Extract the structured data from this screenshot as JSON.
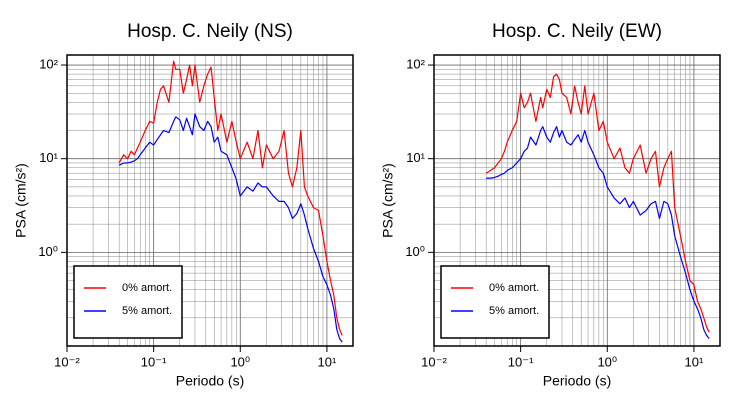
{
  "chart_data": [
    {
      "type": "line",
      "title": "Hosp. C. Neily (NS)",
      "x_label": "Periodo (s)",
      "y_label": "PSA (cm/s²)",
      "x_scale": "log",
      "y_scale": "log",
      "grid": true,
      "legend_position": "lower left",
      "xlim": [
        0.01,
        20
      ],
      "ylim": [
        0.1,
        128
      ],
      "xticks": [
        {
          "value": 0.01,
          "label": "10⁻²"
        },
        {
          "value": 0.1,
          "label": "10⁻¹"
        },
        {
          "value": 1,
          "label": "10⁰"
        },
        {
          "value": 10,
          "label": "10¹"
        }
      ],
      "yticks": [
        {
          "value": 1,
          "label": "10⁰"
        },
        {
          "value": 10,
          "label": "10¹"
        },
        {
          "value": 100,
          "label": "10²"
        }
      ],
      "x": [
        0.04,
        0.045,
        0.05,
        0.055,
        0.06,
        0.065,
        0.07,
        0.08,
        0.09,
        0.1,
        0.11,
        0.12,
        0.13,
        0.15,
        0.17,
        0.18,
        0.2,
        0.22,
        0.24,
        0.26,
        0.28,
        0.3,
        0.34,
        0.38,
        0.42,
        0.46,
        0.5,
        0.55,
        0.6,
        0.7,
        0.8,
        0.9,
        1.0,
        1.2,
        1.4,
        1.6,
        1.8,
        2.0,
        2.4,
        2.8,
        3.2,
        3.6,
        4.0,
        4.5,
        5.0,
        5.5,
        6.0,
        7.0,
        8.0,
        9.0,
        10,
        11,
        12,
        13,
        14,
        15
      ],
      "series": [
        {
          "name": "0% amort.",
          "color": "#ff0000",
          "values": [
            9,
            11,
            10,
            12,
            11,
            13,
            15,
            20,
            25,
            24,
            40,
            55,
            60,
            40,
            110,
            90,
            90,
            50,
            70,
            100,
            60,
            100,
            40,
            60,
            80,
            95,
            45,
            20,
            30,
            15,
            25,
            15,
            10,
            15,
            10,
            20,
            8,
            14,
            10,
            12,
            20,
            7,
            5,
            8,
            20,
            5,
            4,
            3,
            2.8,
            1.5,
            0.8,
            0.5,
            0.35,
            0.2,
            0.15,
            0.13
          ]
        },
        {
          "name": "5% amort.",
          "color": "#0000ff",
          "values": [
            8.5,
            9,
            9,
            9.2,
            9.5,
            10,
            11,
            13,
            15,
            14,
            16,
            18,
            20,
            19,
            25,
            28,
            26,
            20,
            27,
            22,
            18,
            30,
            22,
            20,
            25,
            22,
            15,
            17,
            12,
            11,
            8,
            6,
            4,
            5,
            4.5,
            5.5,
            5,
            5,
            4,
            3.5,
            3.5,
            3,
            2.3,
            2.6,
            3.3,
            2.5,
            1.8,
            1.1,
            0.8,
            0.55,
            0.45,
            0.35,
            0.25,
            0.15,
            0.12,
            0.11
          ]
        }
      ]
    },
    {
      "type": "line",
      "title": "Hosp. C. Neily (EW)",
      "x_label": "Periodo (s)",
      "y_label": "PSA (cm/s²)",
      "x_scale": "log",
      "y_scale": "log",
      "grid": true,
      "legend_position": "lower left",
      "xlim": [
        0.01,
        20
      ],
      "ylim": [
        0.1,
        128
      ],
      "xticks": [
        {
          "value": 0.01,
          "label": "10⁻²"
        },
        {
          "value": 0.1,
          "label": "10⁻¹"
        },
        {
          "value": 1,
          "label": "10⁰"
        },
        {
          "value": 10,
          "label": "10¹"
        }
      ],
      "yticks": [
        {
          "value": 1,
          "label": "10⁰"
        },
        {
          "value": 10,
          "label": "10¹"
        },
        {
          "value": 100,
          "label": "10²"
        }
      ],
      "x": [
        0.04,
        0.045,
        0.05,
        0.055,
        0.06,
        0.065,
        0.07,
        0.08,
        0.09,
        0.1,
        0.11,
        0.12,
        0.13,
        0.15,
        0.17,
        0.18,
        0.2,
        0.22,
        0.24,
        0.26,
        0.28,
        0.3,
        0.34,
        0.38,
        0.42,
        0.46,
        0.5,
        0.55,
        0.6,
        0.7,
        0.8,
        0.9,
        1.0,
        1.2,
        1.4,
        1.6,
        1.8,
        2.0,
        2.4,
        2.8,
        3.2,
        3.6,
        4.0,
        4.5,
        5.0,
        5.5,
        6.0,
        7.0,
        8.0,
        9.0,
        10,
        11,
        12,
        13,
        14,
        15
      ],
      "series": [
        {
          "name": "0% amort.",
          "color": "#ff0000",
          "values": [
            7,
            7.5,
            8,
            9,
            10,
            12,
            15,
            20,
            25,
            50,
            35,
            40,
            50,
            25,
            45,
            35,
            55,
            45,
            75,
            80,
            70,
            50,
            45,
            30,
            60,
            40,
            30,
            60,
            30,
            50,
            20,
            25,
            15,
            10,
            13,
            8,
            7,
            10,
            14,
            7,
            10,
            12,
            5,
            8,
            10,
            12,
            3,
            1.5,
            0.8,
            0.5,
            0.45,
            0.3,
            0.25,
            0.2,
            0.16,
            0.14
          ]
        },
        {
          "name": "5% amort.",
          "color": "#0000ff",
          "values": [
            6.2,
            6.2,
            6.3,
            6.5,
            6.8,
            7,
            7.5,
            8,
            9,
            10,
            12,
            13,
            17,
            14,
            20,
            22,
            17,
            15,
            19,
            22,
            17,
            20,
            15,
            14,
            16,
            18,
            15,
            20,
            15,
            11,
            8,
            7,
            5,
            3.8,
            3.3,
            3.8,
            3,
            3.5,
            2.5,
            2.8,
            3.3,
            3.5,
            2.3,
            3.5,
            3.3,
            2.5,
            1.5,
            0.9,
            0.6,
            0.4,
            0.3,
            0.25,
            0.2,
            0.15,
            0.13,
            0.12
          ]
        }
      ]
    }
  ]
}
